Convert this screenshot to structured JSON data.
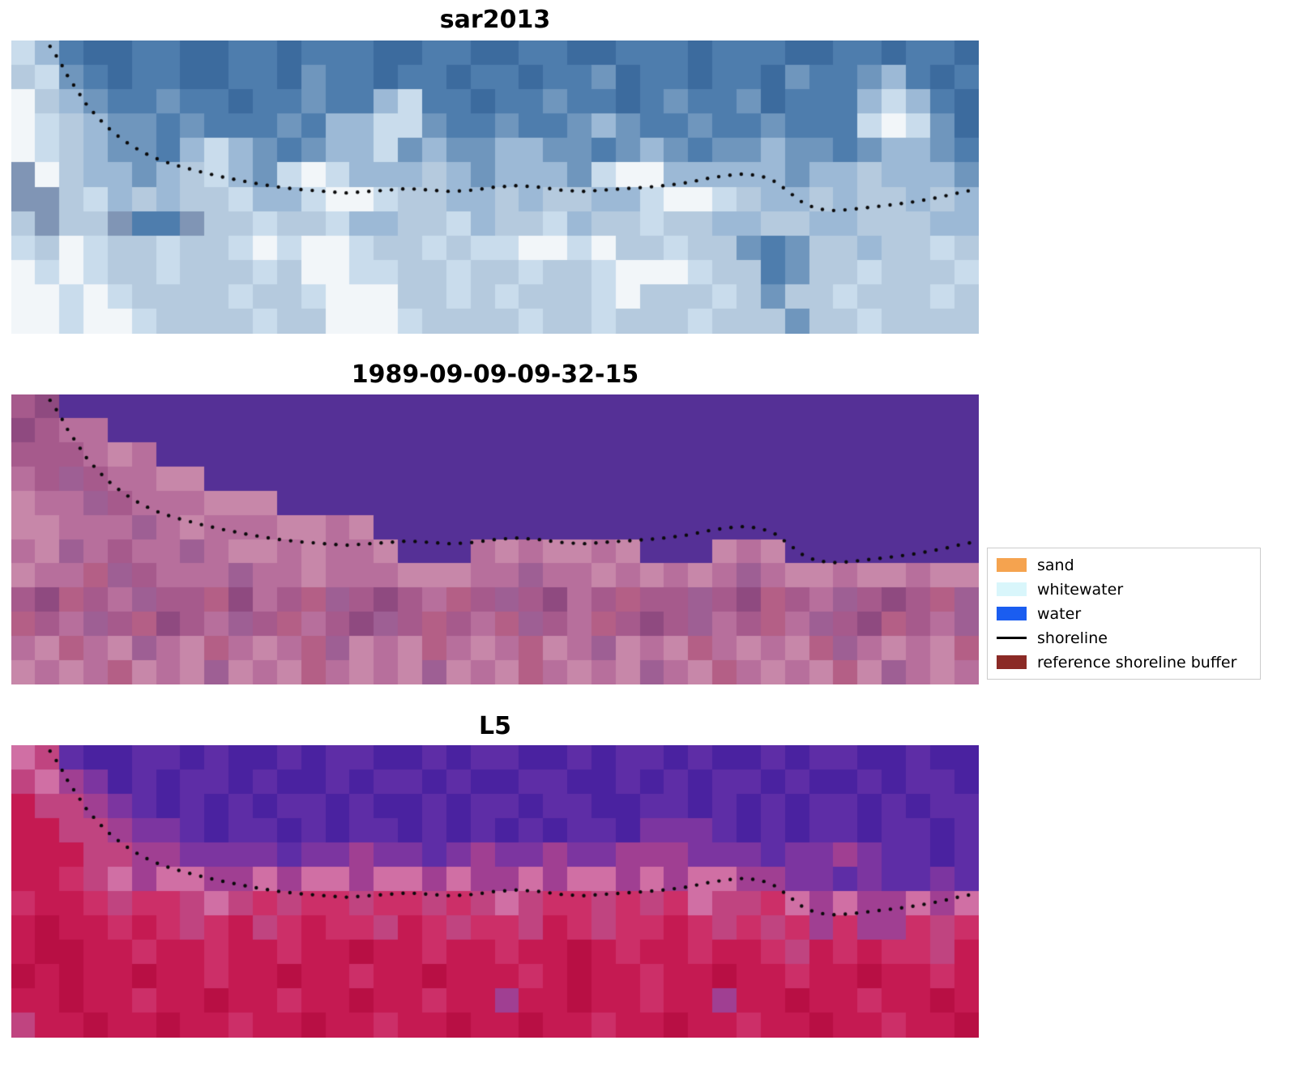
{
  "chart_data": {
    "type": "image",
    "description": "Shoreline detection figure: three co-registered coastal image panels (SAR composite, classified Landsat scene, L5 false-color) with a dotted detected shoreline overlaid on each, plus a classification legend",
    "panels": [
      {
        "id": "sar2013",
        "title": "sar2013",
        "grid": {
          "cols": 40,
          "rows": 12
        },
        "palette": {
          "a": "#3c6b9e",
          "b": "#4e7dad",
          "c": "#6f96bd",
          "d": "#9cb9d6",
          "e": "#c9dcec",
          "f": "#f2f6f9",
          "g": "#8095b5",
          "h": "#b5cade"
        },
        "pixels": [
          "edbaabbaabbabbbaabbaabbaabbbabbbaabbabba",
          "hecbabbaabbacbbabbabbabbcabbabbacbbcdbab",
          "fhdcbbcbbabbcbbdebbabbcbbabcbbcabbbdedba",
          "fehdccbcbbbcbddeecbbcbbcdcbbcbbcbbbefeca",
          "fehdccbdedcbcddecdccddccbcdcbccdccbcddcb",
          "gfhddcdhedcefedddhdcdddceffdddddcddhdddc",
          "gghedhdhheddeffehhddhdhhddeffehddhdhhdhd",
          "hghhgbbghhehheddhhedhhedhhehhddhhddhhhdd",
          "ehfehhehhefeffehheheeffefhhehhcbchhdhheh",
          "fefehhehhhehffeehhehhehhefffehhbchhehhhe",
          "ffefehhhhehhefffhhehehhhefhhhehchhehhheh",
          "ffeffehhhhehhfffehhhhehhehhhehhhchhehhhh"
        ]
      },
      {
        "id": "1989-09-09-09-32-15",
        "title": "1989-09-09-09-32-15",
        "grid": {
          "cols": 40,
          "rows": 12
        },
        "palette": {
          "p": "#553096",
          "q": "#a65a8c",
          "r": "#b76f9c",
          "s": "#c787a9",
          "t": "#8f4a80",
          "u": "#9e5f94",
          "v": "#b45f86"
        },
        "pixels": [
          "qtpppppppppppppppppppppppppppppppppppppp",
          "tqrrpppppppppppppppppppppppppppppppppppp",
          "qqqrsrpppppppppppppppppppppppppppppppppp",
          "rquqrrsspppppppppppppppppppppppppppppppp",
          "srruqrrrsssppppppppppppppppppppppppppppp",
          "ssrrrursrrrssrsppppppppppppppppppppppppp",
          "rsurqrrurssrsrrsppprsrssrspppsrspppppppp",
          "srrvuqrrrurrsrrrsssrrurrsrsrsrurssrssrss",
          "qtvqruqqvtrqvuqtqrvquqtrqvqquqtvqruqtqvu",
          "vqruqvtqruqvrqtuqvqrvuqrvqtqurqvruqtvqru",
          "rsvrsursvrsrvusrsvrsrvsrusrsvrsrsvursrsv",
          "srsrvsrsusrsvrsrsusrsvrsrsursvrsrsvsursr"
        ]
      },
      {
        "id": "L5",
        "title": "L5",
        "grid": {
          "cols": 40,
          "rows": 12
        },
        "palette": {
          "A": "#4a22a0",
          "B": "#5e2da6",
          "C": "#7c35a0",
          "D": "#a03f92",
          "E": "#c04480",
          "F": "#c51a52",
          "G": "#d06fa4",
          "H": "#cc2f68",
          "J": "#b80f44"
        },
        "pixels": [
          "GEBAABBABAABABBAABABBAABABBABAABABBAABAA",
          "EGDCABABBABAABABBABAABBAABABABBABAABABBA",
          "FEEDCBABABABBABAABABBABBAABBABABABBABABB",
          "FFEEDCCBABBABABBABABABABBACCCBABABBABBAB",
          "FFFEEDDCCCCBCCDCCBCDCCDCCDDDCCCBCCDCBBAB",
          "FFHEGDGGDDGDGGDGGDGDDGDGGDGDGGDDCCBCBBCB",
          "HFFHEHHEGEHEHHEHHEHEGEHHEHEHGEEHGDGDDGDG",
          "FJFFHFHEHFEHFHHEFHEHHEFHEHHFHEHEHDHDDHEH",
          "FJJFFHFFHFFHFFJFFHFFHFFJFHFFHFFHEFHFHHEF",
          "JFJFFJFFHFFJFFHFFJFFFHFJFFHFFJFFHFFJFFHF",
          "FFJFFHFFJFFHFFJFFHFFDFFJFFHFFDFFJFFHFFJF",
          "EFFJFFJFFHFFJFFHFFJFFJFFHFFJFFHFFJFFHFFJ"
        ]
      }
    ],
    "shoreline": {
      "label": "shoreline",
      "color": "#0a0a0a",
      "style": "dotted",
      "points": [
        [
          0.04,
          0.02
        ],
        [
          0.05,
          0.07
        ],
        [
          0.058,
          0.12
        ],
        [
          0.068,
          0.17
        ],
        [
          0.078,
          0.22
        ],
        [
          0.09,
          0.265
        ],
        [
          0.104,
          0.31
        ],
        [
          0.118,
          0.345
        ],
        [
          0.135,
          0.38
        ],
        [
          0.155,
          0.41
        ],
        [
          0.175,
          0.43
        ],
        [
          0.198,
          0.45
        ],
        [
          0.222,
          0.468
        ],
        [
          0.247,
          0.484
        ],
        [
          0.272,
          0.498
        ],
        [
          0.298,
          0.508
        ],
        [
          0.322,
          0.514
        ],
        [
          0.345,
          0.52
        ],
        [
          0.368,
          0.515
        ],
        [
          0.39,
          0.51
        ],
        [
          0.41,
          0.505
        ],
        [
          0.432,
          0.51
        ],
        [
          0.455,
          0.515
        ],
        [
          0.478,
          0.51
        ],
        [
          0.5,
          0.5
        ],
        [
          0.522,
          0.495
        ],
        [
          0.545,
          0.5
        ],
        [
          0.568,
          0.51
        ],
        [
          0.59,
          0.515
        ],
        [
          0.612,
          0.51
        ],
        [
          0.635,
          0.505
        ],
        [
          0.658,
          0.5
        ],
        [
          0.68,
          0.493
        ],
        [
          0.7,
          0.484
        ],
        [
          0.72,
          0.47
        ],
        [
          0.74,
          0.46
        ],
        [
          0.758,
          0.455
        ],
        [
          0.775,
          0.462
        ],
        [
          0.79,
          0.482
        ],
        [
          0.805,
          0.52
        ],
        [
          0.818,
          0.553
        ],
        [
          0.832,
          0.573
        ],
        [
          0.848,
          0.58
        ],
        [
          0.865,
          0.577
        ],
        [
          0.882,
          0.571
        ],
        [
          0.9,
          0.564
        ],
        [
          0.918,
          0.557
        ],
        [
          0.935,
          0.549
        ],
        [
          0.952,
          0.539
        ],
        [
          0.968,
          0.528
        ],
        [
          0.982,
          0.517
        ],
        [
          0.992,
          0.511
        ]
      ]
    },
    "legend": {
      "position": "center-right",
      "border_color": "#cccccc",
      "items": [
        {
          "label": "sand",
          "type": "patch",
          "color": "#f5a34f"
        },
        {
          "label": "whitewater",
          "type": "patch",
          "color": "#d9f6fb"
        },
        {
          "label": "water",
          "type": "patch",
          "color": "#1a5df0"
        },
        {
          "label": "shoreline",
          "type": "line",
          "color": "#000000"
        },
        {
          "label": "reference shoreline buffer",
          "type": "patch",
          "color": "#8b2a26"
        }
      ]
    }
  }
}
